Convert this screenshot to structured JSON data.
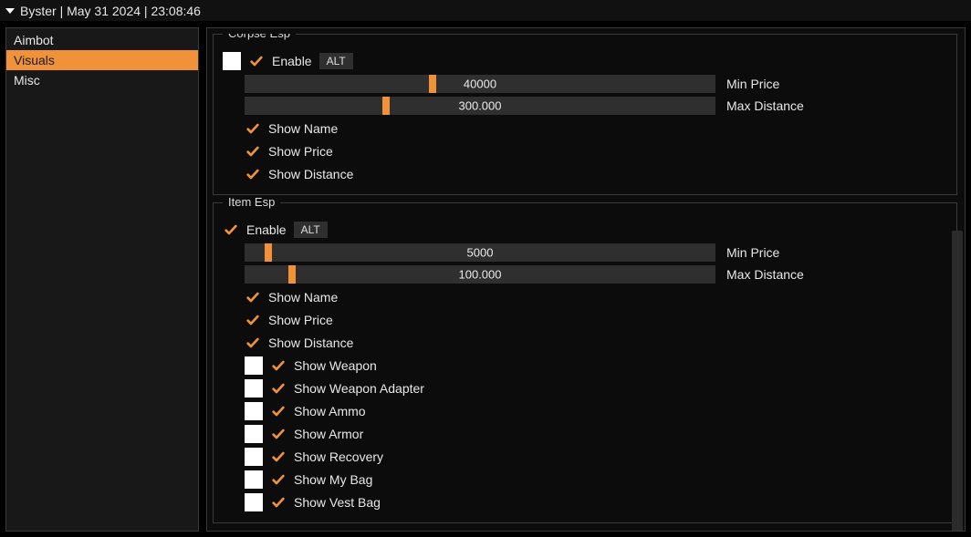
{
  "title": "Byster | May 31 2024 | 23:08:46",
  "accent_color": "#ef9239",
  "sidebar": {
    "items": [
      {
        "label": "Aimbot",
        "active": false
      },
      {
        "label": "Visuals",
        "active": true
      },
      {
        "label": "Misc",
        "active": false
      }
    ]
  },
  "groups": [
    {
      "title": "Corpse Esp",
      "enable": {
        "label": "Enable",
        "checked": true,
        "has_color": true,
        "color": "#ffffff",
        "key": "ALT"
      },
      "sliders": [
        {
          "label": "Min Price",
          "value": "40000",
          "thumb_pct": 40
        },
        {
          "label": "Max Distance",
          "value": "300.000",
          "thumb_pct": 30
        }
      ],
      "options": [
        {
          "label": "Show Name",
          "checked": true,
          "has_color": false
        },
        {
          "label": "Show Price",
          "checked": true,
          "has_color": false
        },
        {
          "label": "Show Distance",
          "checked": true,
          "has_color": false
        }
      ]
    },
    {
      "title": "Item Esp",
      "enable": {
        "label": "Enable",
        "checked": true,
        "has_color": false,
        "key": "ALT"
      },
      "sliders": [
        {
          "label": "Min Price",
          "value": "5000",
          "thumb_pct": 5
        },
        {
          "label": "Max Distance",
          "value": "100.000",
          "thumb_pct": 10
        }
      ],
      "options": [
        {
          "label": "Show Name",
          "checked": true,
          "has_color": false
        },
        {
          "label": "Show Price",
          "checked": true,
          "has_color": false
        },
        {
          "label": "Show Distance",
          "checked": true,
          "has_color": false
        },
        {
          "label": "Show Weapon",
          "checked": true,
          "has_color": true,
          "color": "#ffffff"
        },
        {
          "label": "Show Weapon Adapter",
          "checked": true,
          "has_color": true,
          "color": "#ffffff"
        },
        {
          "label": "Show Ammo",
          "checked": true,
          "has_color": true,
          "color": "#ffffff"
        },
        {
          "label": "Show Armor",
          "checked": true,
          "has_color": true,
          "color": "#ffffff"
        },
        {
          "label": "Show Recovery",
          "checked": true,
          "has_color": true,
          "color": "#ffffff"
        },
        {
          "label": "Show My Bag",
          "checked": true,
          "has_color": true,
          "color": "#ffffff"
        },
        {
          "label": "Show Vest Bag",
          "checked": true,
          "has_color": true,
          "color": "#ffffff"
        }
      ]
    }
  ]
}
